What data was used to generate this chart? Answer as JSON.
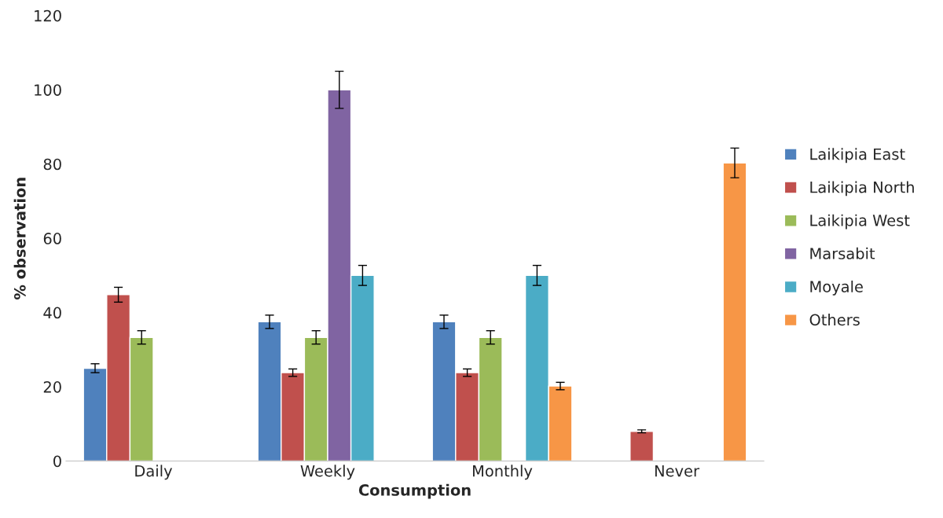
{
  "chart_data": {
    "type": "bar",
    "xlabel": "Consumption",
    "ylabel": "% observation",
    "categories": [
      "Daily",
      "Weekly",
      "Monthly",
      "Never"
    ],
    "series": [
      {
        "name": "Laikipia East",
        "color": "#4f81bd",
        "values": [
          25,
          37.5,
          37.5,
          null
        ],
        "errors": [
          1.2,
          1.8,
          1.8,
          null
        ]
      },
      {
        "name": "Laikipia North",
        "color": "#c0504d",
        "values": [
          44.8,
          23.8,
          23.8,
          8
        ],
        "errors": [
          2,
          1,
          1,
          0.4
        ]
      },
      {
        "name": "Laikipia West",
        "color": "#9bbb59",
        "values": [
          33.3,
          33.3,
          33.3,
          null
        ],
        "errors": [
          1.8,
          1.8,
          1.8,
          null
        ]
      },
      {
        "name": "Marsabit",
        "color": "#8064a2",
        "values": [
          null,
          100,
          null,
          null
        ],
        "errors": [
          null,
          5,
          null,
          null
        ]
      },
      {
        "name": "Moyale",
        "color": "#4bacc6",
        "values": [
          null,
          50,
          50,
          null
        ],
        "errors": [
          null,
          2.7,
          2.7,
          null
        ]
      },
      {
        "name": "Others",
        "color": "#f79646",
        "values": [
          null,
          null,
          20.2,
          80.3
        ],
        "errors": [
          null,
          null,
          1,
          4
        ]
      }
    ],
    "ylim": [
      0,
      120
    ],
    "yticks": [
      0,
      20,
      40,
      60,
      80,
      100,
      120
    ],
    "grid": false,
    "legend": "right"
  }
}
